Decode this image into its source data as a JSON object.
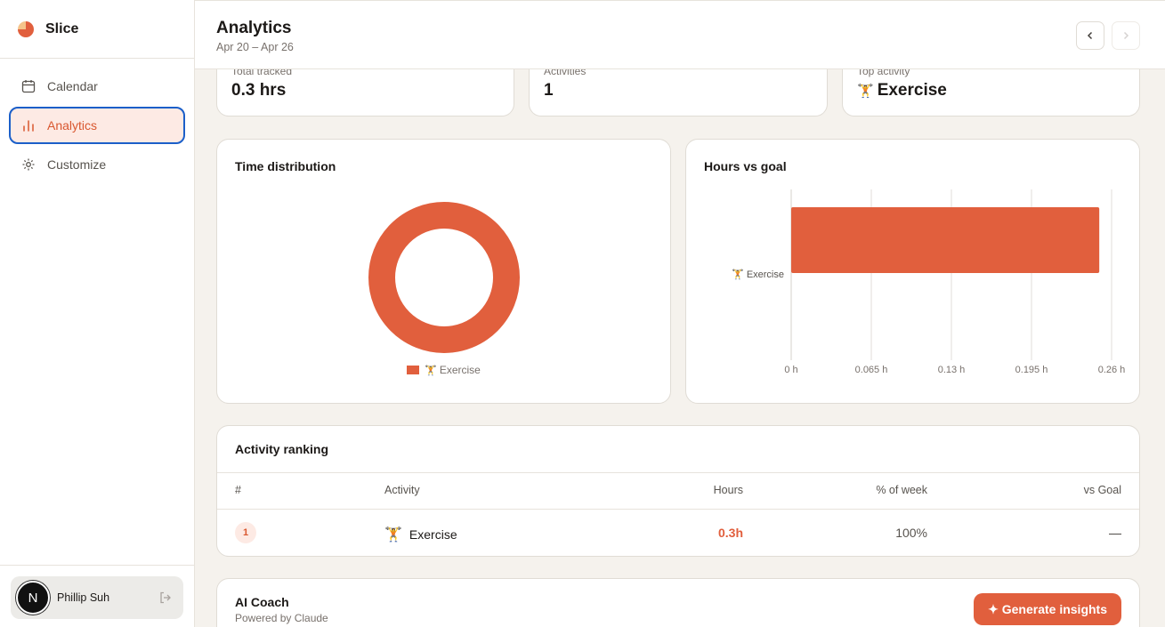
{
  "brand": {
    "name": "Slice"
  },
  "sidebar": {
    "items": [
      {
        "label": "Calendar",
        "icon": "calendar-icon"
      },
      {
        "label": "Analytics",
        "icon": "bar-chart-icon",
        "active": true
      },
      {
        "label": "Customize",
        "icon": "settings-icon"
      }
    ],
    "user": {
      "name": "Phillip Suh",
      "avatar_letter": "N"
    }
  },
  "header": {
    "title": "Analytics",
    "date_range": "Apr 20 – Apr 26"
  },
  "stats": [
    {
      "label": "Total tracked",
      "value": "0.3 hrs"
    },
    {
      "label": "Activities",
      "value": "1"
    },
    {
      "label": "Top activity",
      "emoji": "🏋️",
      "value": "Exercise"
    }
  ],
  "time_distribution": {
    "title": "Time distribution",
    "legend_label": "Exercise",
    "legend_emoji": "🏋️"
  },
  "hours_vs_goal": {
    "title": "Hours vs goal",
    "category_label": "Exercise",
    "category_emoji": "🏋️",
    "ticks": [
      "0 h",
      "0.065 h",
      "0.13 h",
      "0.195 h",
      "0.26 h"
    ]
  },
  "chart_data": [
    {
      "type": "pie",
      "title": "Time distribution",
      "categories": [
        "Exercise"
      ],
      "values": [
        100
      ],
      "colors": [
        "#e15f3d"
      ]
    },
    {
      "type": "bar",
      "orientation": "horizontal",
      "title": "Hours vs goal",
      "categories": [
        "Exercise"
      ],
      "values": [
        0.25
      ],
      "xlim": [
        0,
        0.26
      ],
      "color": "#e15f3d"
    }
  ],
  "activity_ranking": {
    "title": "Activity ranking",
    "columns": [
      "#",
      "Activity",
      "Hours",
      "% of week",
      "vs Goal"
    ],
    "rows": [
      {
        "rank": "1",
        "emoji": "🏋️",
        "activity": "Exercise",
        "hours": "0.3h",
        "pct": "100%",
        "vs_goal": "—"
      }
    ]
  },
  "ai_coach": {
    "title": "AI Coach",
    "subtitle": "Powered by Claude",
    "button": "✦ Generate insights"
  },
  "colors": {
    "accent": "#e15f3d",
    "focus": "#1b5fc9"
  }
}
